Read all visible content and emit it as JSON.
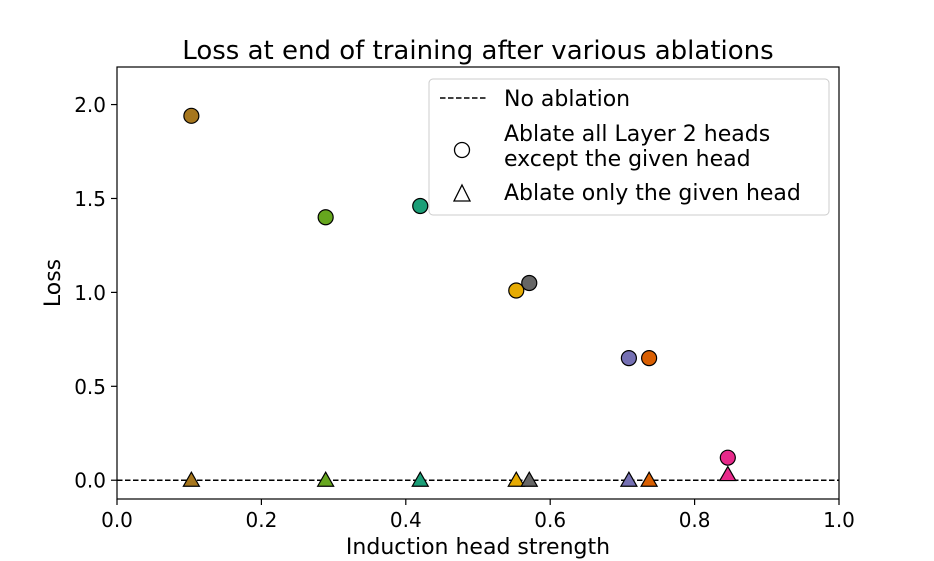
{
  "chart_data": {
    "type": "scatter",
    "title": "Loss at end of training after various ablations",
    "xlabel": "Induction head strength",
    "ylabel": "Loss",
    "xlim": [
      0.0,
      1.0
    ],
    "ylim": [
      -0.1,
      2.2
    ],
    "xticks": [
      "0.0",
      "0.2",
      "0.4",
      "0.6",
      "0.8",
      "1.0"
    ],
    "yticks": [
      "0.0",
      "0.5",
      "1.0",
      "1.5",
      "2.0"
    ],
    "grid": false,
    "legend_position": "top-right",
    "legend": {
      "baseline": "No ablation",
      "circle_line1": "Ablate all Layer 2 heads",
      "circle_line2": "except the given head",
      "triangle": "Ablate only the given head"
    },
    "baseline_y": 0.0,
    "heads": [
      {
        "x": 0.103,
        "circle_loss": 1.94,
        "triangle_loss": 0.0,
        "color": "#a6761d"
      },
      {
        "x": 0.289,
        "circle_loss": 1.4,
        "triangle_loss": 0.0,
        "color": "#66a61e"
      },
      {
        "x": 0.42,
        "circle_loss": 1.46,
        "triangle_loss": 0.0,
        "color": "#1b9e77"
      },
      {
        "x": 0.553,
        "circle_loss": 1.01,
        "triangle_loss": 0.0,
        "color": "#e6ab02"
      },
      {
        "x": 0.571,
        "circle_loss": 1.05,
        "triangle_loss": 0.0,
        "color": "#666666"
      },
      {
        "x": 0.709,
        "circle_loss": 0.65,
        "triangle_loss": 0.0,
        "color": "#7570b3"
      },
      {
        "x": 0.737,
        "circle_loss": 0.65,
        "triangle_loss": 0.0,
        "color": "#d95f02"
      },
      {
        "x": 0.846,
        "circle_loss": 0.12,
        "triangle_loss": 0.03,
        "color": "#e7298a"
      }
    ]
  }
}
